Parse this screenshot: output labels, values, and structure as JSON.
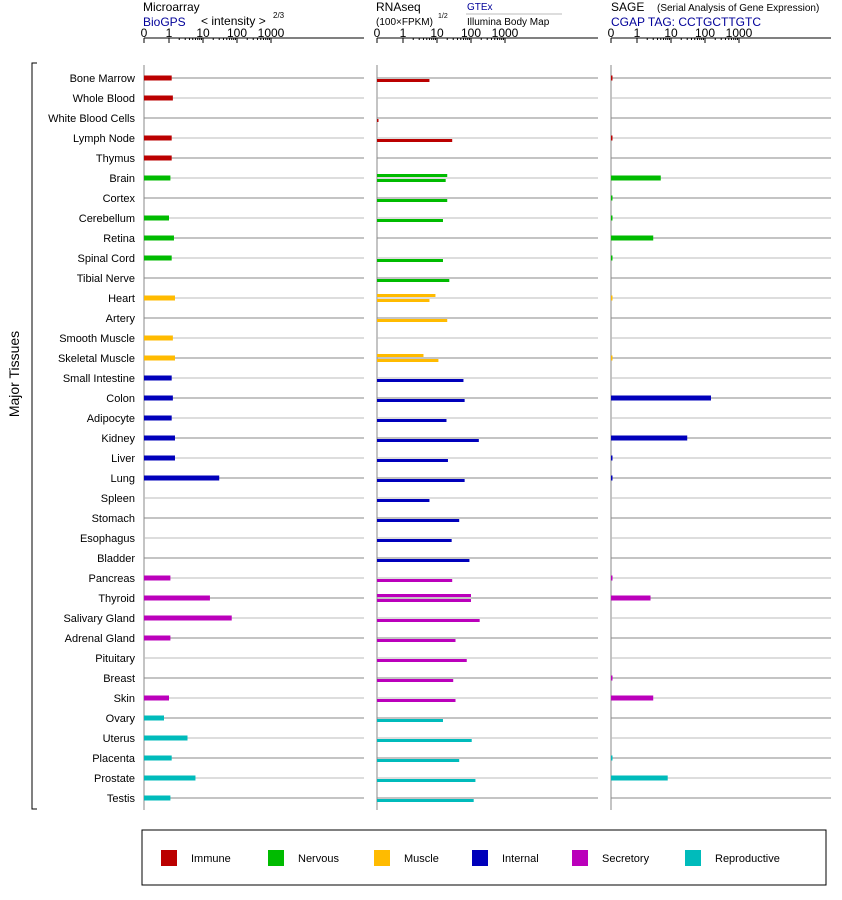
{
  "panels": {
    "microarray": {
      "title": "Microarray",
      "source": "BioGPS",
      "scale_label": "< intensity >",
      "scale_exponent": "2/3"
    },
    "rnaseq": {
      "title": "RNAseq",
      "unit": "(100×FPKM)",
      "unit_exponent": "1/2",
      "source_top": "GTEx",
      "source_bottom": "Illumina Body Map"
    },
    "sage": {
      "title": "SAGE",
      "subtitle": "(Serial Analysis of Gene Expression)",
      "tag": "CGAP TAG: CCTGCTTGTC"
    }
  },
  "axis_label": "Major Tissues",
  "chart_data": {
    "type": "bar",
    "orientation": "horizontal",
    "scale": "log",
    "tick_values": [
      0,
      1,
      10,
      100,
      1000
    ],
    "tick_labels": [
      "0",
      "1",
      "10",
      "100",
      "1000"
    ],
    "xlim": [
      0,
      1000
    ],
    "categories": [
      "Bone Marrow",
      "Whole Blood",
      "White Blood Cells",
      "Lymph Node",
      "Thymus",
      "Brain",
      "Cortex",
      "Cerebellum",
      "Retina",
      "Spinal Cord",
      "Tibial Nerve",
      "Heart",
      "Artery",
      "Smooth Muscle",
      "Skeletal Muscle",
      "Small Intestine",
      "Colon",
      "Adipocyte",
      "Kidney",
      "Liver",
      "Lung",
      "Spleen",
      "Stomach",
      "Esophagus",
      "Bladder",
      "Pancreas",
      "Thyroid",
      "Salivary Gland",
      "Adrenal Gland",
      "Pituitary",
      "Breast",
      "Skin",
      "Ovary",
      "Uterus",
      "Placenta",
      "Prostate",
      "Testis"
    ],
    "groups": [
      "Immune",
      "Immune",
      "Immune",
      "Immune",
      "Immune",
      "Nervous",
      "Nervous",
      "Nervous",
      "Nervous",
      "Nervous",
      "Nervous",
      "Muscle",
      "Muscle",
      "Muscle",
      "Muscle",
      "Internal",
      "Internal",
      "Internal",
      "Internal",
      "Internal",
      "Internal",
      "Internal",
      "Internal",
      "Internal",
      "Internal",
      "Secretory",
      "Secretory",
      "Secretory",
      "Secretory",
      "Secretory",
      "Secretory",
      "Secretory",
      "Reproductive",
      "Reproductive",
      "Reproductive",
      "Reproductive",
      "Reproductive"
    ],
    "series": [
      {
        "name": "Microarray",
        "values": [
          1.2,
          1.3,
          null,
          1.2,
          1.2,
          1.1,
          null,
          1.0,
          1.4,
          1.2,
          null,
          1.5,
          null,
          1.3,
          1.5,
          1.2,
          1.3,
          1.2,
          1.5,
          1.5,
          30,
          null,
          null,
          null,
          null,
          1.1,
          16,
          70,
          1.1,
          null,
          null,
          1.0,
          0.8,
          3.5,
          1.2,
          6,
          1.1
        ]
      },
      {
        "name": "RNAseq GTEx",
        "values": [
          null,
          null,
          null,
          null,
          null,
          20,
          null,
          null,
          null,
          null,
          null,
          9,
          null,
          null,
          4,
          null,
          null,
          null,
          null,
          null,
          null,
          null,
          null,
          null,
          null,
          null,
          100,
          null,
          null,
          null,
          null,
          null,
          null,
          null,
          null,
          null,
          null
        ]
      },
      {
        "name": "RNAseq",
        "values": [
          6,
          null,
          0.03,
          28,
          null,
          18,
          20,
          15,
          null,
          15,
          23,
          6,
          20,
          null,
          11,
          60,
          65,
          19,
          170,
          21,
          65,
          6,
          45,
          27,
          90,
          28,
          100,
          180,
          35,
          75,
          30,
          35,
          15,
          105,
          45,
          135,
          120
        ]
      },
      {
        "name": "SAGE",
        "values": [
          0.05,
          null,
          null,
          0.05,
          null,
          5,
          0.03,
          0.03,
          3,
          0.03,
          null,
          0.02,
          null,
          null,
          0.02,
          null,
          150,
          null,
          30,
          0.05,
          0.05,
          null,
          null,
          null,
          null,
          0.05,
          2.5,
          null,
          null,
          null,
          0.05,
          3,
          null,
          null,
          0.03,
          8,
          null
        ]
      }
    ],
    "legend": {
      "placement": "bottom",
      "entries": [
        {
          "name": "Immune",
          "color": "#bb0000"
        },
        {
          "name": "Nervous",
          "color": "#00bb00"
        },
        {
          "name": "Muscle",
          "color": "#ffbb00"
        },
        {
          "name": "Internal",
          "color": "#0000bb"
        },
        {
          "name": "Secretory",
          "color": "#bb00bb"
        },
        {
          "name": "Reproductive",
          "color": "#00bbbb"
        }
      ]
    }
  }
}
